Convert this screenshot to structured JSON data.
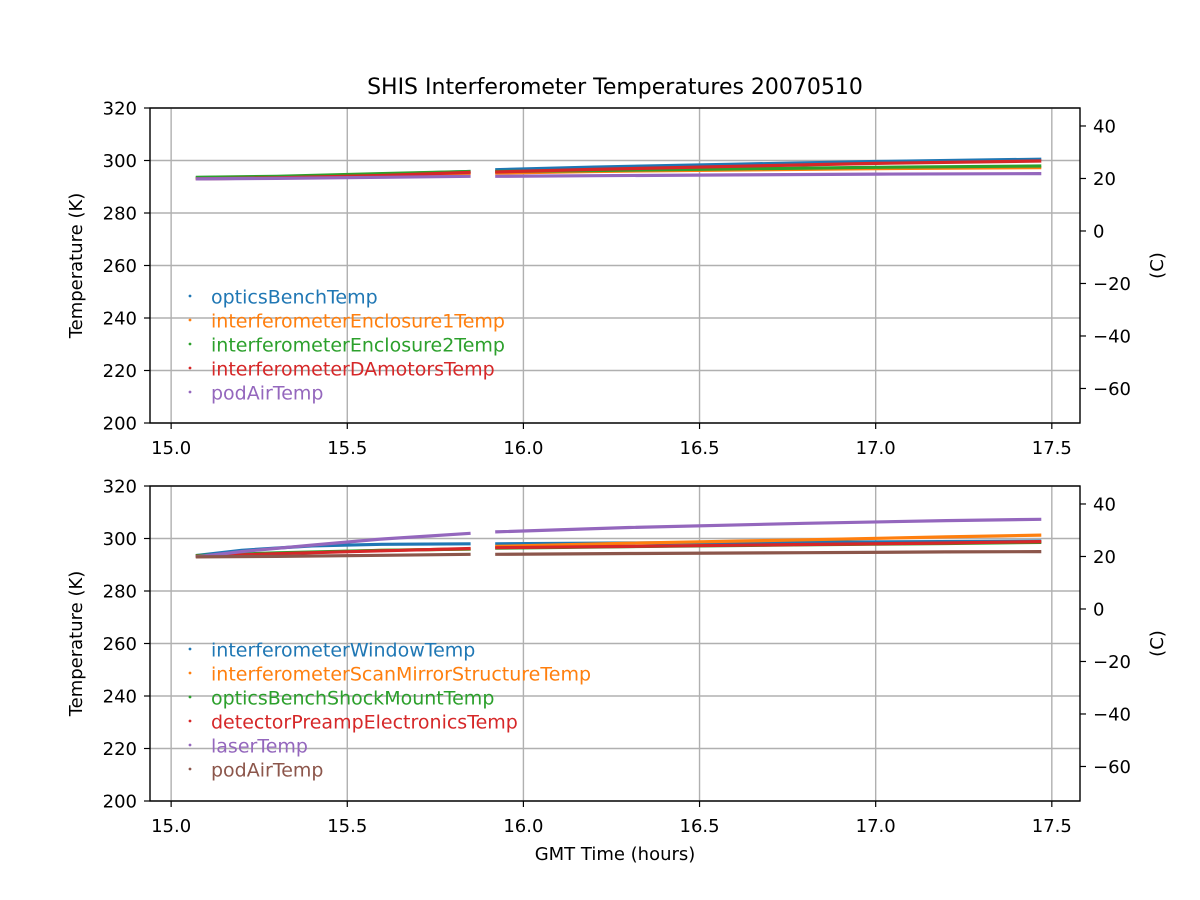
{
  "chart_data": [
    {
      "type": "scatter",
      "title": "SHIS Interferometer Temperatures 20070510",
      "xlabel": "",
      "ylabel": "Temperature (K)",
      "ylabel_right": "(C)",
      "xlim": [
        14.94,
        17.58
      ],
      "ylim": [
        200,
        320
      ],
      "xticks": [
        "15.0",
        "15.5",
        "16.0",
        "16.5",
        "17.0",
        "17.5"
      ],
      "yticks": [
        "200",
        "220",
        "240",
        "260",
        "280",
        "300",
        "320"
      ],
      "yticks_right": [
        "−60",
        "−40",
        "−20",
        "0",
        "20",
        "40"
      ],
      "grid": true,
      "legend_position": "center-left",
      "gap": [
        15.85,
        15.92
      ],
      "series": [
        {
          "name": "opticsBenchTemp",
          "color": "#1f77b4",
          "x": [
            15.07,
            15.3,
            15.6,
            15.85,
            15.92,
            16.2,
            16.6,
            17.0,
            17.47
          ],
          "y": [
            293.5,
            293.8,
            294.8,
            295.8,
            296.5,
            297.5,
            298.6,
            299.6,
            300.5
          ]
        },
        {
          "name": "interferometerEnclosure1Temp",
          "color": "#ff7f0e",
          "x": [
            15.07,
            15.3,
            15.6,
            15.85,
            15.92,
            16.2,
            16.6,
            17.0,
            17.47
          ],
          "y": [
            293.2,
            293.5,
            294.2,
            295.0,
            295.2,
            295.8,
            296.4,
            296.9,
            297.3
          ]
        },
        {
          "name": "interferometerEnclosure2Temp",
          "color": "#2ca02c",
          "x": [
            15.07,
            15.3,
            15.6,
            15.85,
            15.92,
            16.2,
            16.6,
            17.0,
            17.47
          ],
          "y": [
            293.6,
            294.0,
            295.0,
            295.8,
            295.8,
            296.2,
            296.8,
            297.4,
            297.9
          ]
        },
        {
          "name": "interferometerDAmotorsTemp",
          "color": "#d62728",
          "x": [
            15.07,
            15.3,
            15.6,
            15.85,
            15.92,
            16.2,
            16.6,
            17.0,
            17.47
          ],
          "y": [
            293.0,
            293.4,
            294.3,
            295.5,
            295.6,
            296.6,
            297.8,
            298.9,
            299.8
          ]
        },
        {
          "name": "podAirTemp",
          "color": "#9467bd",
          "x": [
            15.07,
            15.3,
            15.6,
            15.85,
            15.92,
            16.2,
            16.6,
            17.0,
            17.47
          ],
          "y": [
            293.0,
            293.2,
            293.6,
            294.0,
            294.0,
            294.2,
            294.5,
            294.8,
            295.0
          ]
        }
      ]
    },
    {
      "type": "scatter",
      "title": "",
      "xlabel": "GMT Time (hours)",
      "ylabel": "Temperature (K)",
      "ylabel_right": "(C)",
      "xlim": [
        14.94,
        17.58
      ],
      "ylim": [
        200,
        320
      ],
      "xticks": [
        "15.0",
        "15.5",
        "16.0",
        "16.5",
        "17.0",
        "17.5"
      ],
      "yticks": [
        "200",
        "220",
        "240",
        "260",
        "280",
        "300",
        "320"
      ],
      "yticks_right": [
        "−60",
        "−40",
        "−20",
        "0",
        "20",
        "40"
      ],
      "grid": true,
      "legend_position": "lower-left",
      "gap": [
        15.85,
        15.92
      ],
      "series": [
        {
          "name": "interferometerWindowTemp",
          "color": "#1f77b4",
          "x": [
            15.07,
            15.2,
            15.4,
            15.6,
            15.85,
            15.92,
            16.3,
            16.8,
            17.47
          ],
          "y": [
            293.5,
            295.5,
            297.2,
            297.8,
            298.0,
            298.0,
            298.3,
            298.6,
            299.0
          ]
        },
        {
          "name": "interferometerScanMirrorStructureTemp",
          "color": "#ff7f0e",
          "x": [
            15.07,
            15.3,
            15.6,
            15.85,
            15.92,
            16.3,
            16.8,
            17.2,
            17.47
          ],
          "y": [
            293.3,
            294.3,
            295.5,
            296.0,
            297.0,
            298.2,
            299.5,
            300.6,
            301.3
          ]
        },
        {
          "name": "opticsBenchShockMountTemp",
          "color": "#2ca02c",
          "x": [
            15.07,
            15.3,
            15.6,
            15.85,
            15.92,
            16.3,
            16.8,
            17.2,
            17.47
          ],
          "y": [
            293.5,
            294.5,
            295.5,
            296.0,
            296.3,
            296.9,
            297.6,
            298.1,
            298.5
          ]
        },
        {
          "name": "detectorPreampElectronicsTemp",
          "color": "#d62728",
          "x": [
            15.07,
            15.3,
            15.6,
            15.85,
            15.92,
            16.3,
            16.8,
            17.2,
            17.47
          ],
          "y": [
            293.2,
            294.2,
            295.3,
            296.2,
            296.5,
            297.0,
            297.7,
            298.3,
            298.8
          ]
        },
        {
          "name": "laserTemp",
          "color": "#9467bd",
          "x": [
            15.07,
            15.2,
            15.4,
            15.6,
            15.85,
            15.92,
            16.3,
            16.8,
            17.2,
            17.47
          ],
          "y": [
            293.0,
            295.0,
            297.5,
            299.8,
            302.0,
            302.5,
            304.2,
            305.8,
            306.8,
            307.3
          ]
        },
        {
          "name": "podAirTemp",
          "color": "#8c564b",
          "x": [
            15.07,
            15.3,
            15.6,
            15.85,
            15.92,
            16.3,
            16.8,
            17.2,
            17.47
          ],
          "y": [
            293.0,
            293.2,
            293.6,
            294.0,
            294.0,
            294.3,
            294.6,
            294.9,
            295.0
          ]
        }
      ]
    }
  ]
}
